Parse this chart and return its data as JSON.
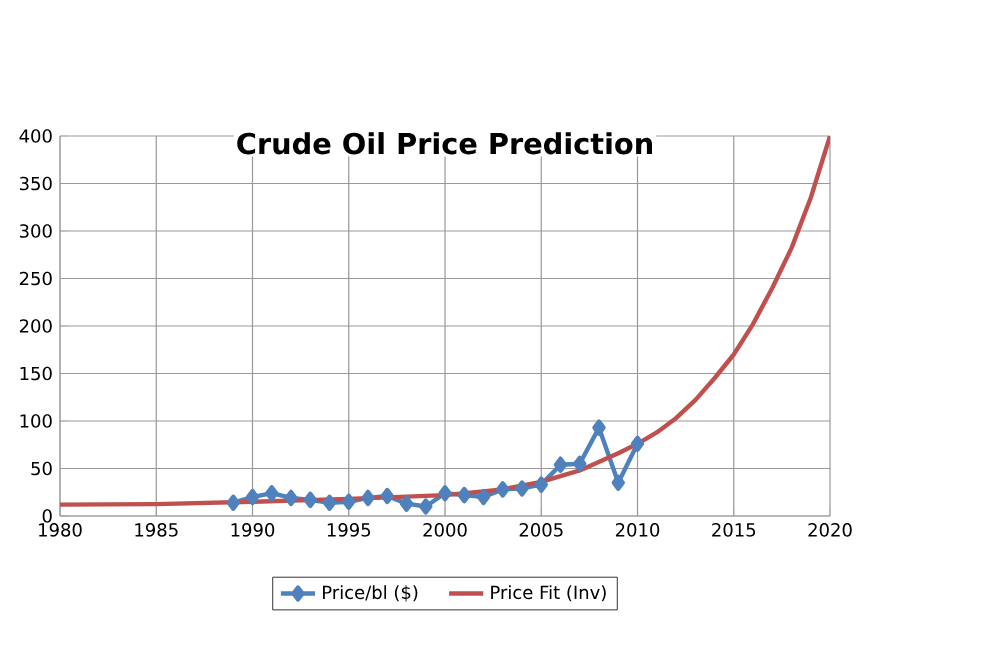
{
  "chart_data": {
    "type": "line",
    "title": "Crude Oil Price Prediction",
    "xlim": [
      1980,
      2020
    ],
    "xticks": [
      1980,
      1985,
      1990,
      1995,
      2000,
      2005,
      2010,
      2015,
      2020
    ],
    "ylim": [
      0,
      400
    ],
    "yticks": [
      0,
      50,
      100,
      150,
      200,
      250,
      300,
      350,
      400
    ],
    "grid": true,
    "legend": "bottom",
    "series": [
      {
        "name": "Price/bl ($)",
        "color": "#4f81bd",
        "marker": "diamond",
        "x": [
          1989,
          1990,
          1991,
          1992,
          1993,
          1994,
          1995,
          1996,
          1997,
          1998,
          1999,
          2000,
          2001,
          2002,
          2003,
          2004,
          2005,
          2006,
          2007,
          2008,
          2009,
          2010
        ],
        "values": [
          14,
          20,
          24,
          19,
          17,
          14,
          15,
          19,
          21,
          13,
          10,
          24,
          22,
          20,
          28,
          29,
          33,
          54,
          55,
          93,
          35,
          76
        ]
      },
      {
        "name": "Price Fit (Inv)",
        "color": "#c0504d",
        "marker": "none",
        "x": [
          1980,
          1985,
          1990,
          1995,
          2000,
          2003,
          2005,
          2007,
          2008,
          2009,
          2010,
          2011,
          2012,
          2013,
          2014,
          2015,
          2016,
          2017,
          2018,
          2019,
          2020
        ],
        "values": [
          12,
          12.5,
          15,
          18,
          22,
          28,
          36,
          48,
          57,
          66,
          76,
          88,
          103,
          122,
          145,
          170,
          202,
          240,
          282,
          335,
          400
        ]
      }
    ]
  }
}
